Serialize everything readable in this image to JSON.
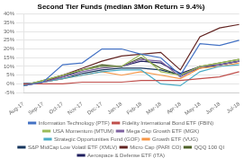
{
  "chart_data": {
    "type": "line",
    "title": "Second Tier Funds (median 3Mon Return = 9.4%)",
    "categories": [
      "Aug-17",
      "Sep-17",
      "Oct-17",
      "Nov-17",
      "Dec-17",
      "Jan-18",
      "Feb-18",
      "Mar-18",
      "Apr-18",
      "May-18",
      "Jun-18",
      "Jul-18"
    ],
    "series": [
      {
        "name": "Information Technology (PTF)",
        "color": "#4472C4",
        "values": [
          -1,
          1,
          11,
          12,
          20,
          20,
          17,
          15,
          5,
          23,
          22,
          25
        ]
      },
      {
        "name": "Fidelity International Bond ETF (FBIN)",
        "color": "#C0504D",
        "values": [
          0,
          0,
          0,
          1,
          1,
          1,
          2,
          2,
          2,
          3,
          4,
          7
        ]
      },
      {
        "name": "USA Momentum (MTUM)",
        "color": "#9BBB59",
        "values": [
          -1,
          2,
          5,
          8,
          10,
          10,
          17,
          7,
          5,
          10,
          12,
          14
        ]
      },
      {
        "name": "Mega Cap Growth ETF (MGK)",
        "color": "#8064A2",
        "values": [
          -1,
          1,
          4,
          7,
          9,
          10,
          14,
          13,
          4,
          10,
          11,
          13
        ]
      },
      {
        "name": "Strategic Opportunities Fund (GOF)",
        "color": "#4BACC6",
        "values": [
          0,
          1,
          3,
          5,
          7,
          8,
          8,
          0,
          -1,
          7,
          10,
          11
        ]
      },
      {
        "name": "Growth ETF (VUG)",
        "color": "#F79646",
        "values": [
          -1,
          1,
          3,
          5,
          7,
          5,
          7,
          5,
          3,
          9,
          10,
          12
        ]
      },
      {
        "name": "S&P MidCap Low Volatil ETF (XMLV)",
        "color": "#17375E",
        "values": [
          0,
          1,
          3,
          6,
          8,
          9,
          9,
          8,
          5,
          9,
          11,
          13
        ]
      },
      {
        "name": "Micro Cap (PARI CO)",
        "color": "#632523",
        "values": [
          -1,
          1,
          5,
          9,
          13,
          16,
          17,
          18,
          8,
          27,
          32,
          34
        ]
      },
      {
        "name": "QQQ 100 QI",
        "color": "#4F6228",
        "values": [
          -1,
          2,
          5,
          8,
          11,
          10,
          15,
          9,
          5,
          10,
          12,
          14
        ]
      },
      {
        "name": "Aerospace & Defense ETF (ITA)",
        "color": "#1F1F5E",
        "values": [
          0,
          1,
          4,
          8,
          10,
          10,
          13,
          12,
          6,
          10,
          11,
          13
        ]
      }
    ],
    "ylim": [
      -5,
      40
    ],
    "yticks": [
      {
        "value": -5,
        "label": "-5%"
      },
      {
        "value": 0,
        "label": "0%"
      },
      {
        "value": 5,
        "label": "5%"
      },
      {
        "value": 10,
        "label": "10%"
      },
      {
        "value": 15,
        "label": "15%"
      },
      {
        "value": 20,
        "label": "20%"
      },
      {
        "value": 25,
        "label": "25%"
      },
      {
        "value": 30,
        "label": "30%"
      },
      {
        "value": 35,
        "label": "35%"
      },
      {
        "value": 40,
        "label": "40%"
      }
    ],
    "grid": true,
    "legend": "bottom"
  }
}
